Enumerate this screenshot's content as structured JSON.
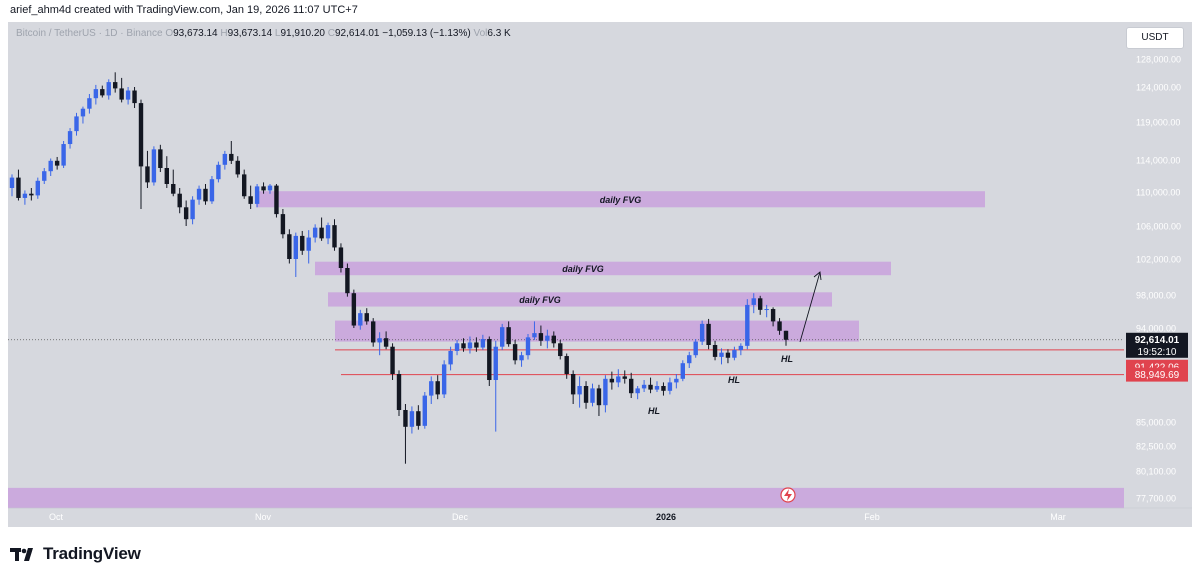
{
  "attribution": "arief_ahm4d created with TradingView.com, Jan 19, 2026 11:07 UTC+7",
  "legend": {
    "symbol": "Bitcoin / TetherUS · 1D · Binance",
    "o_label": "O",
    "o": "93,673.14",
    "h_label": "H",
    "h": "93,673.14",
    "l_label": "L",
    "l": "91,910.20",
    "c_label": "C",
    "c": "92,614.01",
    "change": "−1,059.13 (−1.13%)",
    "vol_label": "Vol",
    "vol": "6.3 K"
  },
  "currency_button": "USDT",
  "brand": {
    "name": "TradingView"
  },
  "colors": {
    "up": "#3a66e8",
    "down": "#131722",
    "zone": "#c9a2dd",
    "support_line": "#e0434e",
    "bg": "#d6d8de"
  },
  "chart_data": {
    "type": "candlestick",
    "y_axis_ticks": [
      "128,000.00",
      "124,000.00",
      "119,000.00",
      "114,000.00",
      "110,000.00",
      "106,000.00",
      "102,000.00",
      "98,000.00",
      "94,000.00",
      "85,000.00",
      "82,500.00",
      "80,100.00",
      "77,700.00"
    ],
    "x_axis_ticks": [
      "Oct",
      "Nov",
      "Dec",
      "2026",
      "Feb",
      "Mar"
    ],
    "price_labels": [
      {
        "value": "92,614.01",
        "sub": "19:52:10",
        "style": "dark"
      },
      {
        "value": "91,422.06",
        "style": "red"
      },
      {
        "value": "88,949.69",
        "style": "red"
      }
    ],
    "zones": [
      {
        "label": "daily FVG",
        "low": 108200,
        "high": 110100
      },
      {
        "label": "daily FVG",
        "low": 100200,
        "high": 101700
      },
      {
        "label": "daily FVG",
        "low": 96600,
        "high": 98300
      },
      {
        "label": "",
        "low": 92400,
        "high": 94900
      },
      {
        "label": "",
        "low": 76800,
        "high": 78600
      }
    ],
    "horizontal_lines": [
      91422.06,
      88949.69
    ],
    "annotations": [
      "HL",
      "HL",
      "HL"
    ],
    "candles": [
      {
        "o": 110500,
        "h": 112200,
        "l": 109500,
        "c": 111800
      },
      {
        "o": 111800,
        "h": 112800,
        "l": 109000,
        "c": 109300
      },
      {
        "o": 109300,
        "h": 110200,
        "l": 108500,
        "c": 109800
      },
      {
        "o": 109800,
        "h": 110500,
        "l": 109000,
        "c": 109600
      },
      {
        "o": 109600,
        "h": 111800,
        "l": 109200,
        "c": 111400
      },
      {
        "o": 111400,
        "h": 113000,
        "l": 111000,
        "c": 112600
      },
      {
        "o": 112600,
        "h": 114200,
        "l": 112000,
        "c": 113900
      },
      {
        "o": 113900,
        "h": 114400,
        "l": 112800,
        "c": 113300
      },
      {
        "o": 113300,
        "h": 116500,
        "l": 113000,
        "c": 116100
      },
      {
        "o": 116100,
        "h": 118200,
        "l": 115500,
        "c": 117800
      },
      {
        "o": 117800,
        "h": 120300,
        "l": 117200,
        "c": 119800
      },
      {
        "o": 119800,
        "h": 121200,
        "l": 118800,
        "c": 120900
      },
      {
        "o": 120900,
        "h": 123000,
        "l": 120200,
        "c": 122400
      },
      {
        "o": 122400,
        "h": 124300,
        "l": 121500,
        "c": 123700
      },
      {
        "o": 123700,
        "h": 124200,
        "l": 122500,
        "c": 122800
      },
      {
        "o": 122800,
        "h": 125100,
        "l": 122200,
        "c": 124700
      },
      {
        "o": 124700,
        "h": 126100,
        "l": 123200,
        "c": 123800
      },
      {
        "o": 123800,
        "h": 125300,
        "l": 121800,
        "c": 122200
      },
      {
        "o": 122200,
        "h": 124000,
        "l": 121500,
        "c": 123500
      },
      {
        "o": 123500,
        "h": 124000,
        "l": 121000,
        "c": 121700
      },
      {
        "o": 121700,
        "h": 122200,
        "l": 108000,
        "c": 113200
      },
      {
        "o": 113200,
        "h": 115200,
        "l": 110500,
        "c": 111200
      },
      {
        "o": 111200,
        "h": 115800,
        "l": 110800,
        "c": 115400
      },
      {
        "o": 115400,
        "h": 116000,
        "l": 112500,
        "c": 113000
      },
      {
        "o": 113000,
        "h": 114500,
        "l": 110500,
        "c": 111000
      },
      {
        "o": 111000,
        "h": 112800,
        "l": 109500,
        "c": 109800
      },
      {
        "o": 109800,
        "h": 110500,
        "l": 107500,
        "c": 108200
      },
      {
        "o": 108200,
        "h": 109000,
        "l": 106000,
        "c": 106800
      },
      {
        "o": 106800,
        "h": 109500,
        "l": 106200,
        "c": 109100
      },
      {
        "o": 109100,
        "h": 110800,
        "l": 108500,
        "c": 110400
      },
      {
        "o": 110400,
        "h": 111000,
        "l": 108500,
        "c": 108900
      },
      {
        "o": 108900,
        "h": 112000,
        "l": 108600,
        "c": 111600
      },
      {
        "o": 111600,
        "h": 113800,
        "l": 111200,
        "c": 113400
      },
      {
        "o": 113400,
        "h": 115200,
        "l": 112800,
        "c": 114800
      },
      {
        "o": 114800,
        "h": 116500,
        "l": 113500,
        "c": 113900
      },
      {
        "o": 113900,
        "h": 114500,
        "l": 111800,
        "c": 112200
      },
      {
        "o": 112200,
        "h": 112800,
        "l": 109200,
        "c": 109500
      },
      {
        "o": 109500,
        "h": 110800,
        "l": 108000,
        "c": 108600
      },
      {
        "o": 108600,
        "h": 111000,
        "l": 108200,
        "c": 110700
      },
      {
        "o": 110700,
        "h": 111200,
        "l": 109800,
        "c": 110200
      },
      {
        "o": 110200,
        "h": 111000,
        "l": 109800,
        "c": 110800
      },
      {
        "o": 110800,
        "h": 111000,
        "l": 107000,
        "c": 107400
      },
      {
        "o": 107400,
        "h": 108000,
        "l": 104500,
        "c": 105000
      },
      {
        "o": 105000,
        "h": 105600,
        "l": 101500,
        "c": 102000
      },
      {
        "o": 102000,
        "h": 105200,
        "l": 100000,
        "c": 104800
      },
      {
        "o": 104800,
        "h": 105400,
        "l": 102500,
        "c": 103000
      },
      {
        "o": 103000,
        "h": 105500,
        "l": 101500,
        "c": 104600
      },
      {
        "o": 104600,
        "h": 106200,
        "l": 104000,
        "c": 105800
      },
      {
        "o": 105800,
        "h": 107000,
        "l": 104200,
        "c": 104500
      },
      {
        "o": 104500,
        "h": 106400,
        "l": 103800,
        "c": 106100
      },
      {
        "o": 106100,
        "h": 106800,
        "l": 103000,
        "c": 103400
      },
      {
        "o": 103400,
        "h": 103900,
        "l": 100500,
        "c": 101000
      },
      {
        "o": 101000,
        "h": 101500,
        "l": 97800,
        "c": 98200
      },
      {
        "o": 98200,
        "h": 98600,
        "l": 94000,
        "c": 94300
      },
      {
        "o": 94300,
        "h": 96200,
        "l": 93800,
        "c": 95800
      },
      {
        "o": 95800,
        "h": 96400,
        "l": 94400,
        "c": 94800
      },
      {
        "o": 94800,
        "h": 95200,
        "l": 91800,
        "c": 92300
      },
      {
        "o": 92300,
        "h": 93500,
        "l": 90800,
        "c": 92800
      },
      {
        "o": 92800,
        "h": 93600,
        "l": 91500,
        "c": 91800
      },
      {
        "o": 91800,
        "h": 92200,
        "l": 88500,
        "c": 89000
      },
      {
        "o": 89000,
        "h": 89300,
        "l": 85500,
        "c": 86000
      },
      {
        "o": 86000,
        "h": 86500,
        "l": 80800,
        "c": 84500
      },
      {
        "o": 84500,
        "h": 86300,
        "l": 83800,
        "c": 85900
      },
      {
        "o": 85900,
        "h": 86400,
        "l": 84200,
        "c": 84600
      },
      {
        "o": 84600,
        "h": 87500,
        "l": 84300,
        "c": 87200
      },
      {
        "o": 87200,
        "h": 88800,
        "l": 86500,
        "c": 88400
      },
      {
        "o": 88400,
        "h": 88900,
        "l": 86900,
        "c": 87300
      },
      {
        "o": 87300,
        "h": 90200,
        "l": 87000,
        "c": 89800
      },
      {
        "o": 89800,
        "h": 91800,
        "l": 89300,
        "c": 91300
      },
      {
        "o": 91300,
        "h": 92600,
        "l": 90800,
        "c": 92200
      },
      {
        "o": 92200,
        "h": 92800,
        "l": 91200,
        "c": 91600
      },
      {
        "o": 91600,
        "h": 93000,
        "l": 91000,
        "c": 92300
      },
      {
        "o": 92300,
        "h": 92900,
        "l": 91200,
        "c": 91700
      },
      {
        "o": 91700,
        "h": 93200,
        "l": 91400,
        "c": 92700
      },
      {
        "o": 92700,
        "h": 93000,
        "l": 88000,
        "c": 88500
      },
      {
        "o": 88500,
        "h": 92500,
        "l": 84000,
        "c": 91800
      },
      {
        "o": 91800,
        "h": 94500,
        "l": 91400,
        "c": 94100
      },
      {
        "o": 94100,
        "h": 94800,
        "l": 91800,
        "c": 92100
      },
      {
        "o": 92100,
        "h": 92600,
        "l": 89800,
        "c": 90200
      },
      {
        "o": 90200,
        "h": 91200,
        "l": 89600,
        "c": 90800
      },
      {
        "o": 90800,
        "h": 93300,
        "l": 90300,
        "c": 92900
      },
      {
        "o": 92900,
        "h": 94800,
        "l": 92600,
        "c": 93400
      },
      {
        "o": 93400,
        "h": 94300,
        "l": 91900,
        "c": 92500
      },
      {
        "o": 92500,
        "h": 93800,
        "l": 91600,
        "c": 93100
      },
      {
        "o": 93100,
        "h": 93600,
        "l": 91700,
        "c": 92200
      },
      {
        "o": 92200,
        "h": 92600,
        "l": 90300,
        "c": 90700
      },
      {
        "o": 90700,
        "h": 91000,
        "l": 88600,
        "c": 89000
      },
      {
        "o": 89000,
        "h": 89300,
        "l": 86500,
        "c": 87300
      },
      {
        "o": 87300,
        "h": 88800,
        "l": 86200,
        "c": 88000
      },
      {
        "o": 88000,
        "h": 88400,
        "l": 86100,
        "c": 86600
      },
      {
        "o": 86600,
        "h": 88200,
        "l": 86300,
        "c": 87800
      },
      {
        "o": 87800,
        "h": 88100,
        "l": 85500,
        "c": 86400
      },
      {
        "o": 86400,
        "h": 88900,
        "l": 85800,
        "c": 88600
      },
      {
        "o": 88600,
        "h": 89200,
        "l": 87700,
        "c": 88300
      },
      {
        "o": 88300,
        "h": 89400,
        "l": 87900,
        "c": 88800
      },
      {
        "o": 88800,
        "h": 89300,
        "l": 88200,
        "c": 88600
      },
      {
        "o": 88600,
        "h": 89100,
        "l": 87000,
        "c": 87400
      },
      {
        "o": 87400,
        "h": 88000,
        "l": 86900,
        "c": 87800
      },
      {
        "o": 87800,
        "h": 88500,
        "l": 87500,
        "c": 88100
      },
      {
        "o": 88100,
        "h": 88700,
        "l": 87400,
        "c": 87700
      },
      {
        "o": 87700,
        "h": 88400,
        "l": 87500,
        "c": 88000
      },
      {
        "o": 88000,
        "h": 88300,
        "l": 87200,
        "c": 87600
      },
      {
        "o": 87600,
        "h": 88700,
        "l": 87300,
        "c": 88300
      },
      {
        "o": 88300,
        "h": 89000,
        "l": 87800,
        "c": 88600
      },
      {
        "o": 88600,
        "h": 90200,
        "l": 88400,
        "c": 89900
      },
      {
        "o": 89900,
        "h": 91200,
        "l": 89500,
        "c": 90800
      },
      {
        "o": 90800,
        "h": 92700,
        "l": 90500,
        "c": 92400
      },
      {
        "o": 92400,
        "h": 94900,
        "l": 92000,
        "c": 94500
      },
      {
        "o": 94500,
        "h": 95100,
        "l": 91500,
        "c": 92000
      },
      {
        "o": 92000,
        "h": 92500,
        "l": 90200,
        "c": 90600
      },
      {
        "o": 90600,
        "h": 91600,
        "l": 89800,
        "c": 91100
      },
      {
        "o": 91100,
        "h": 91500,
        "l": 89900,
        "c": 90500
      },
      {
        "o": 90500,
        "h": 91800,
        "l": 90200,
        "c": 91400
      },
      {
        "o": 91400,
        "h": 92200,
        "l": 90800,
        "c": 91900
      },
      {
        "o": 91900,
        "h": 97500,
        "l": 91500,
        "c": 96800
      },
      {
        "o": 96800,
        "h": 98200,
        "l": 95800,
        "c": 97600
      },
      {
        "o": 97600,
        "h": 97900,
        "l": 95600,
        "c": 96200
      },
      {
        "o": 96200,
        "h": 96800,
        "l": 95300,
        "c": 96300
      },
      {
        "o": 96300,
        "h": 96500,
        "l": 94200,
        "c": 94800
      },
      {
        "o": 94800,
        "h": 95200,
        "l": 93200,
        "c": 93673
      },
      {
        "o": 93673,
        "h": 93673,
        "l": 91910,
        "c": 92614
      }
    ]
  }
}
